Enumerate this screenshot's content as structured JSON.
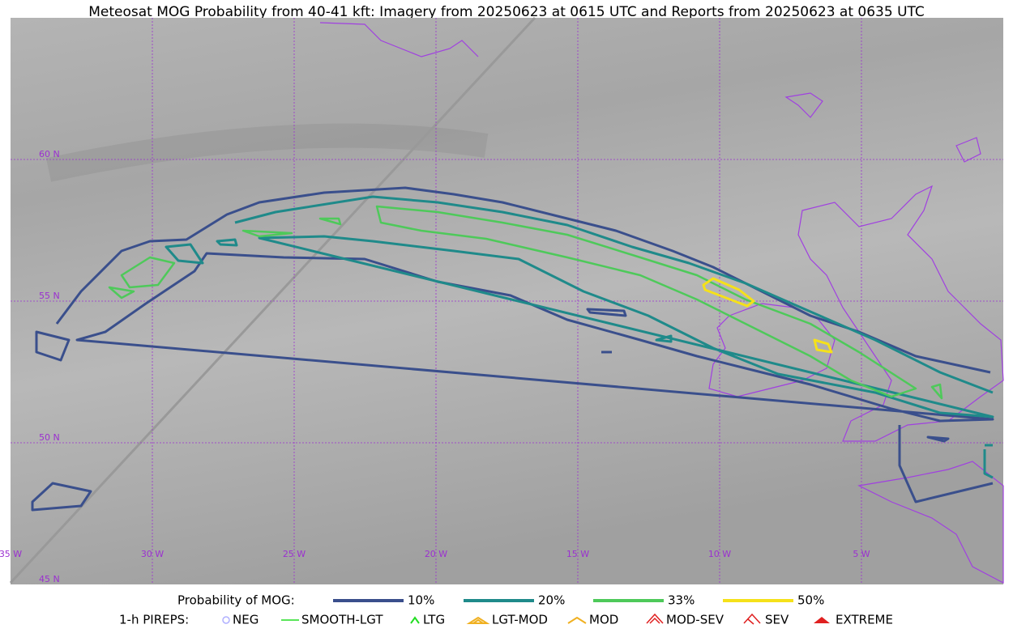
{
  "header": {
    "title": "Meteosat MOG Probability from 40-41 kft: Imagery from 20250623 at 0615 UTC and Reports from 20250623 at 0635 UTC"
  },
  "map": {
    "lat_labels": [
      "60 N",
      "55 N",
      "50 N",
      "45 N"
    ],
    "lon_labels": [
      "35 W",
      "30 W",
      "25 W",
      "20 W",
      "15 W",
      "10 W",
      "5 W"
    ]
  },
  "legend": {
    "probability": {
      "label": "Probability of MOG:",
      "items": [
        "10%",
        "20%",
        "33%",
        "50%"
      ]
    },
    "pireps": {
      "label": "1-h PIREPS:",
      "items": [
        "NEG",
        "SMOOTH-LGT",
        "LTG",
        "LGT-MOD",
        "MOD",
        "MOD-SEV",
        "SEV",
        "EXTREME"
      ]
    }
  }
}
